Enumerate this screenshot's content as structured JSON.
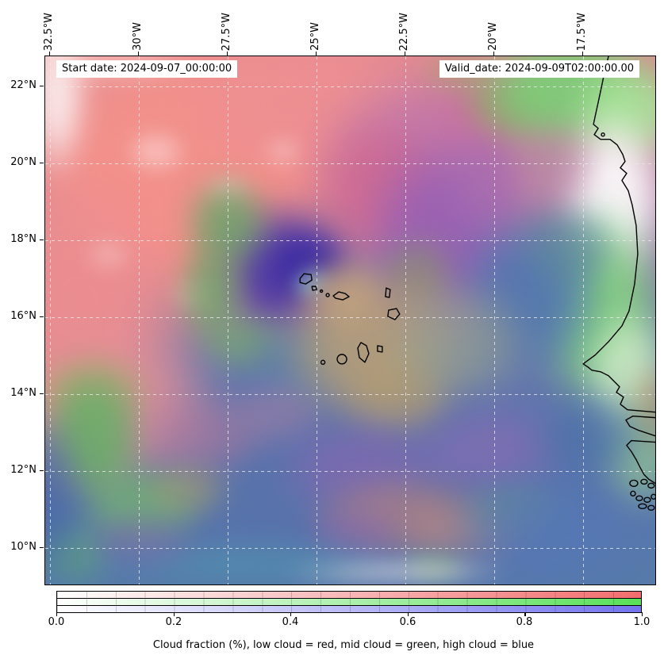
{
  "title_labels": {
    "start": "Start date: 2024-09-07_00:00:00",
    "valid": "Valid_date: 2024-09-09T02:00:00.00"
  },
  "axes": {
    "top_ticks": [
      "32.5°W",
      "30°W",
      "27.5°W",
      "25°W",
      "22.5°W",
      "20°W",
      "17.5°W"
    ],
    "left_ticks": [
      "22°N",
      "20°N",
      "18°N",
      "16°N",
      "14°N",
      "12°N",
      "10°N"
    ]
  },
  "colorbar": {
    "tick_labels": [
      "0.0",
      "0.2",
      "0.4",
      "0.6",
      "0.8",
      "1.0"
    ],
    "caption": "Cloud fraction (%), low cloud = red, mid cloud = green, high cloud = blue",
    "low_cloud_color": "#f26d6d",
    "mid_cloud_color": "#59e059",
    "high_cloud_color": "#7373ef"
  }
}
